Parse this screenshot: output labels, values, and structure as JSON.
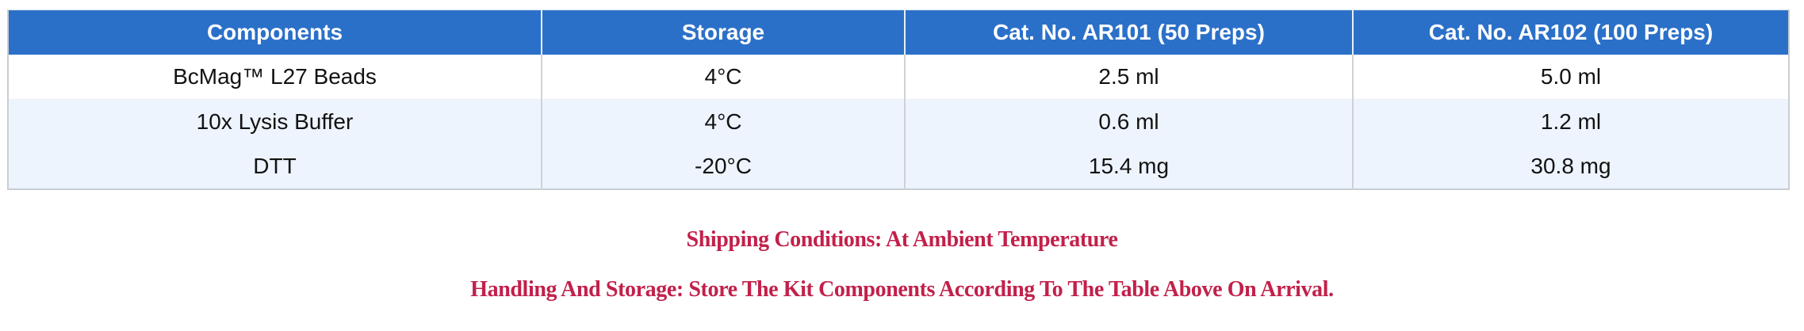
{
  "table": {
    "headers": [
      "Components",
      "Storage",
      "Cat. No. AR101 (50 Preps)",
      "Cat. No. AR102 (100 Preps)"
    ],
    "rows": [
      [
        "BcMag™ L27 Beads",
        "4°C",
        "2.5 ml",
        "5.0 ml"
      ],
      [
        "10x Lysis Buffer",
        "4°C",
        "0.6 ml",
        "1.2 ml"
      ],
      [
        "DTT",
        "-20°C",
        "15.4 mg",
        "30.8 mg"
      ]
    ]
  },
  "notes": {
    "shipping": "Shipping Conditions: At Ambient Temperature",
    "handling": "Handling And Storage: Store The Kit Components According To The Table Above On Arrival."
  },
  "colors": {
    "header_bg": "#2B70C8",
    "header_text": "#FFFFFF",
    "row_alt_bg": "#EDF4FD",
    "body_text": "#121212",
    "border": "#C9CED3",
    "note_text": "#C2204A"
  }
}
